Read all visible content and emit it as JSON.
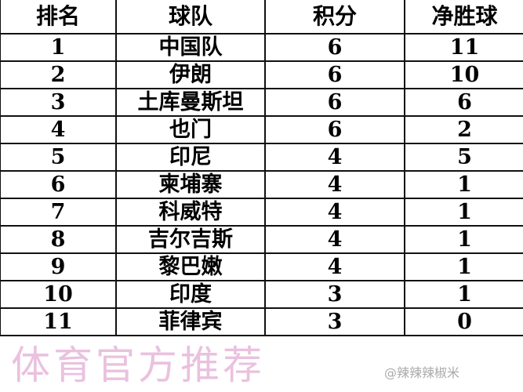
{
  "headers": [
    "排名",
    "球队",
    "积分",
    "净胜球"
  ],
  "rows": [
    [
      "1",
      "中国队",
      "6",
      "11"
    ],
    [
      "2",
      "伊朗",
      "6",
      "10"
    ],
    [
      "3",
      "土库曼斯坦",
      "6",
      "6"
    ],
    [
      "4",
      "也门",
      "6",
      "2"
    ],
    [
      "5",
      "印尼",
      "4",
      "5"
    ],
    [
      "6",
      "柬埔寨",
      "4",
      "1"
    ],
    [
      "7",
      "科威特",
      "4",
      "1"
    ],
    [
      "8",
      "吉尔吉斯",
      "4",
      "1"
    ],
    [
      "9",
      "黎巴嫩",
      "4",
      "1"
    ],
    [
      "10",
      "印度",
      "3",
      "1"
    ],
    [
      "11",
      "菲律宾",
      "3",
      "0"
    ]
  ],
  "watermark": "体育官方推荐",
  "credit": "@辣辣辣椒米",
  "colors": {
    "watermark": "#d98fc6"
  }
}
